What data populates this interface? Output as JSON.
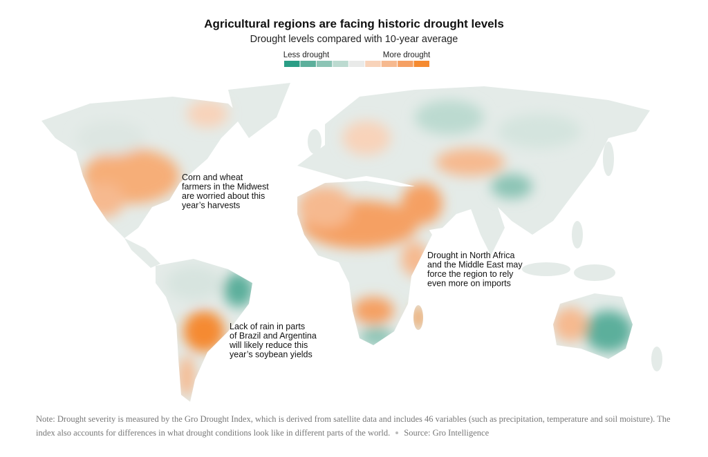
{
  "header": {
    "title": "Agricultural regions are facing historic drought levels",
    "subtitle": "Drought levels compared with 10-year average"
  },
  "legend": {
    "low_label": "Less drought",
    "high_label": "More drought",
    "colors": [
      "#2a9d85",
      "#5caf9b",
      "#8cc4b5",
      "#bcdad0",
      "#e9eae9",
      "#f8d3ba",
      "#f6b98f",
      "#f5a064",
      "#f58a30"
    ]
  },
  "annotations": [
    {
      "lines": [
        "Corn and wheat",
        "farmers in the Midwest",
        "are worried about this",
        "year’s harvests"
      ]
    },
    {
      "lines": [
        "Drought in North Africa",
        "and the Middle East may",
        "force the region to rely",
        "even more on imports"
      ]
    },
    {
      "lines": [
        "Lack of rain in parts",
        "of Brazil and Argentina",
        "will likely reduce this",
        "year’s soybean yields"
      ]
    }
  ],
  "footer": {
    "note": "Note: Drought severity is measured by the Gro Drought Index, which is derived from satellite data and includes 46 variables (such as precipitation, temperature and soil moisture). The index also accounts for differences in what drought conditions look like in different parts of the world.",
    "source": "Source: Gro Intelligence"
  }
}
